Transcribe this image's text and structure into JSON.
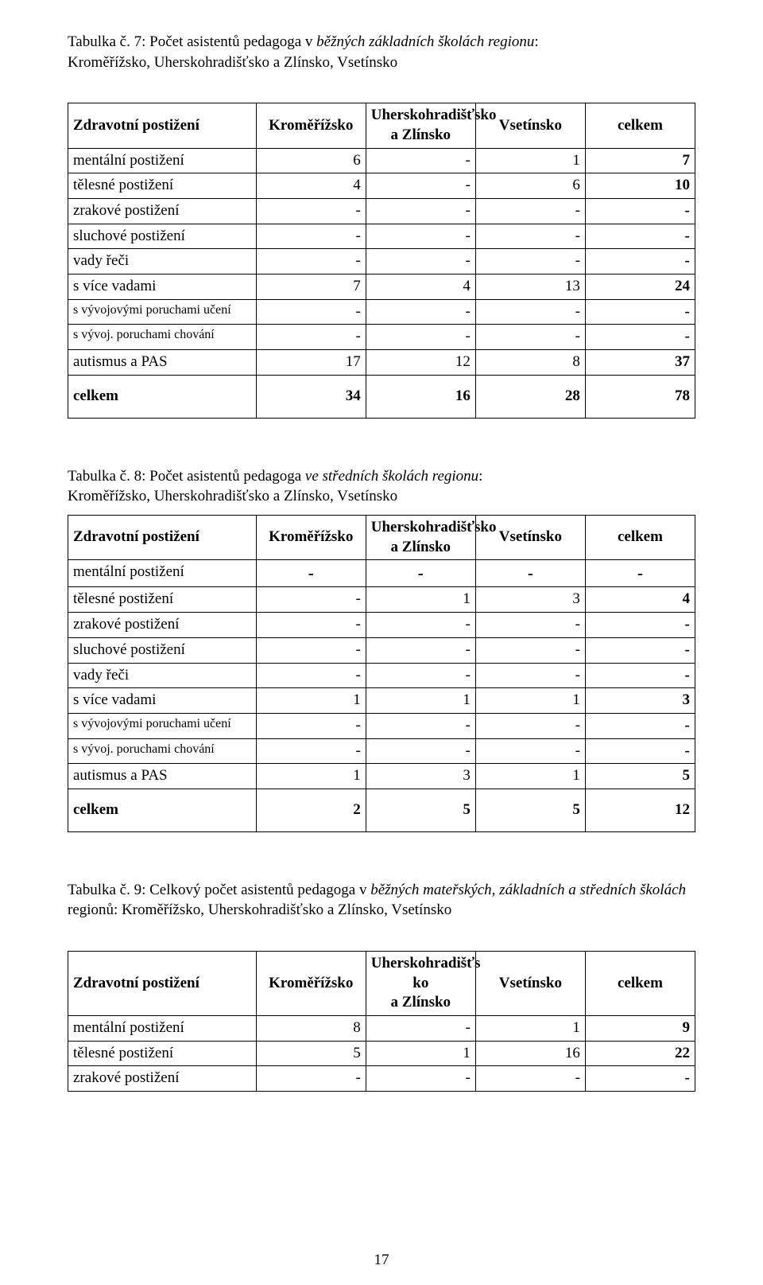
{
  "captions": {
    "t7": "Tabulka č. 7:   Počet asistentů pedagoga v <i>běžných základních školách regionu</i>:<br>Kroměřížsko, Uherskohradišťsko a Zlínsko, Vsetínsko",
    "t8": "Tabulka č. 8:   Počet asistentů pedagoga <i>ve středních školách regionu</i>:<br>Kroměřížsko, Uherskohradišťsko a Zlínsko, Vsetínsko",
    "t9": "Tabulka č. 9:   Celkový počet asistentů pedagoga v <i>běžných mateřských, základních a středních školách</i> regionů: Kroměřížsko, Uherskohradišťsko a Zlínsko, Vsetínsko"
  },
  "headers": {
    "zp": "Zdravotní postižení",
    "km": "Kroměřížsko",
    "uhz": "Uherskohradišťsko\na Zlínsko",
    "uhz_narrow": "Uherskohradišťs\nko\na Zlínsko",
    "vs": "Vsetínsko",
    "ck": "celkem"
  },
  "rowLabels": {
    "mental": "mentální postižení",
    "teles": "tělesné postižení",
    "zrak": "zrakové postižení",
    "sluch": "sluchové postižení",
    "vady": "vady řeči",
    "vice": "s více vadami",
    "uceni": "s vývojovými poruchami učení",
    "chovani": "s vývoj.  poruchami   chování",
    "autismus": "autismus a PAS",
    "celkem": "celkem"
  },
  "t7": {
    "mental": [
      "6",
      "-",
      "1",
      "7"
    ],
    "teles": [
      "4",
      "-",
      "6",
      "10"
    ],
    "zrak": [
      "-",
      "-",
      "-",
      "-"
    ],
    "sluch": [
      "-",
      "-",
      "-",
      "-"
    ],
    "vady": [
      "-",
      "-",
      "-",
      "-"
    ],
    "vice": [
      "7",
      "4",
      "13",
      "24"
    ],
    "uceni": [
      "-",
      "-",
      "-",
      "-"
    ],
    "chovani": [
      "-",
      "-",
      "-",
      "-"
    ],
    "autismus": [
      "17",
      "12",
      "8",
      "37"
    ],
    "celkem": [
      "34",
      "16",
      "28",
      "78"
    ]
  },
  "t8": {
    "mental": [
      "-",
      "-",
      "-",
      "-"
    ],
    "teles": [
      "-",
      "1",
      "3",
      "4"
    ],
    "zrak": [
      "-",
      "-",
      "-",
      "-"
    ],
    "sluch": [
      "-",
      "-",
      "-",
      "-"
    ],
    "vady": [
      "-",
      "-",
      "-",
      "-"
    ],
    "vice": [
      "1",
      "1",
      "1",
      "3"
    ],
    "uceni": [
      "-",
      "-",
      "-",
      "-"
    ],
    "chovani": [
      "-",
      "-",
      "-",
      "-"
    ],
    "autismus": [
      "1",
      "3",
      "1",
      "5"
    ],
    "celkem": [
      "2",
      "5",
      "5",
      "12"
    ]
  },
  "t9": {
    "mental": [
      "8",
      "-",
      "1",
      "9"
    ],
    "teles": [
      "5",
      "1",
      "16",
      "22"
    ],
    "zrak": [
      "-",
      "-",
      "-",
      "-"
    ]
  },
  "pageNumber": "17"
}
